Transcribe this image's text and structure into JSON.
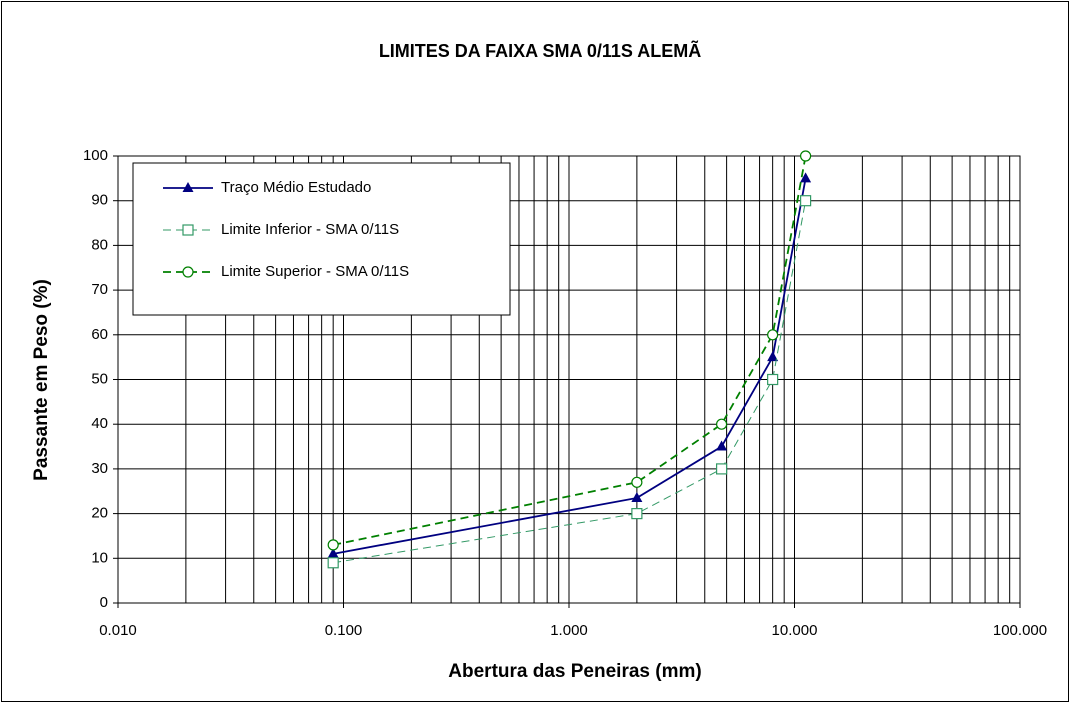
{
  "chart_data": {
    "type": "line",
    "title": "LIMITES DA FAIXA SMA 0/11S ALEMÃ",
    "xlabel": "Abertura das Peneiras (mm)",
    "ylabel": "Passante em Peso (%)",
    "x": [
      0.09,
      2.0,
      4.75,
      8.0,
      11.2
    ],
    "series": [
      {
        "name": "Traço Médio Estudado",
        "color": "#000080",
        "marker": "triangle",
        "dash": false,
        "values": [
          11,
          23.5,
          35,
          55,
          95
        ]
      },
      {
        "name": "Limite Inferior - SMA 0/11S",
        "color": "#339966",
        "marker": "square",
        "dash": true,
        "values": [
          9,
          20,
          30,
          50,
          90
        ]
      },
      {
        "name": "Limite Superior - SMA 0/11S",
        "color": "#008000",
        "marker": "circle",
        "dash": true,
        "values": [
          13,
          27,
          40,
          60,
          100
        ]
      }
    ],
    "xscale": "log",
    "xlim": [
      0.01,
      100
    ],
    "xticks": [
      {
        "value": 0.01,
        "label": "0.010"
      },
      {
        "value": 0.1,
        "label": "0.100"
      },
      {
        "value": 1,
        "label": "1.000"
      },
      {
        "value": 10,
        "label": "10.000"
      },
      {
        "value": 100,
        "label": "100.000"
      }
    ],
    "ylim": [
      0,
      100
    ],
    "yticks": [
      0,
      10,
      20,
      30,
      40,
      50,
      60,
      70,
      80,
      90,
      100
    ],
    "grid": true,
    "legend": "upper left"
  }
}
